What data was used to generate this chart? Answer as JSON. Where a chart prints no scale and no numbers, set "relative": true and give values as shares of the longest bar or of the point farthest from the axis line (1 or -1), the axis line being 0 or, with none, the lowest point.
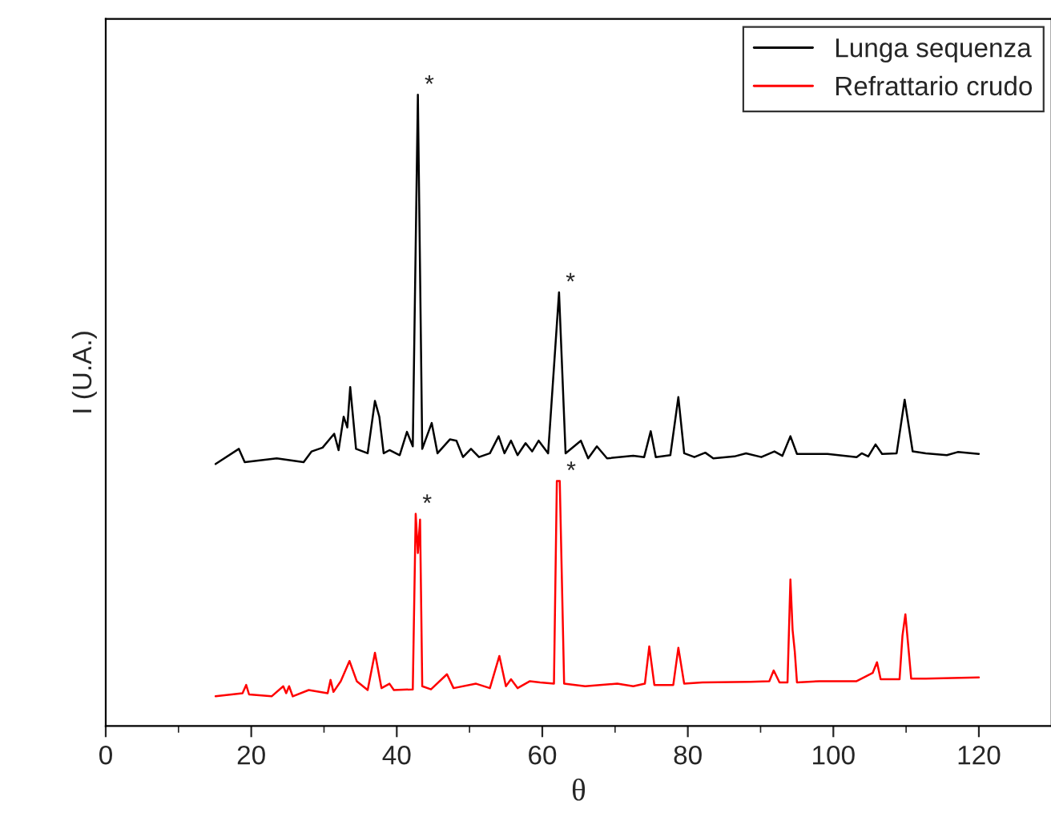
{
  "chart_data": {
    "type": "line",
    "relative": true,
    "xlabel": "θ",
    "ylabel": "I (U.A.)",
    "xlim": [
      0,
      130
    ],
    "xticks": [
      0,
      {
        "value": 10,
        "label": null
      },
      20,
      {
        "value": 30,
        "label": null
      },
      40,
      {
        "value": 50,
        "label": null
      },
      60,
      {
        "value": 70,
        "label": null
      },
      80,
      {
        "value": 90,
        "label": null
      },
      100,
      {
        "value": 110,
        "label": null
      },
      120
    ],
    "tick_labels": "x",
    "legend": "top right",
    "grid": false,
    "marker": "none",
    "line_style": "solid",
    "series": [
      {
        "name": "Lunga sequenza",
        "color": "#000000",
        "x": [
          15.1,
          18.3,
          19.1,
          23.5,
          27.2,
          28.3,
          29.8,
          31.4,
          32.0,
          32.7,
          33.2,
          33.6,
          34.4,
          36.0,
          37.0,
          37.6,
          38.2,
          39.0,
          40.4,
          41.4,
          42.2,
          42.9,
          43.5,
          44.8,
          45.6,
          47.3,
          48.2,
          49.1,
          50.2,
          51.3,
          52.8,
          54.0,
          54.8,
          55.7,
          56.6,
          57.7,
          58.6,
          59.5,
          60.8,
          62.3,
          63.2,
          65.3,
          66.3,
          67.5,
          68.9,
          72.5,
          74.0,
          74.9,
          75.6,
          77.6,
          78.7,
          79.5,
          80.9,
          82.4,
          83.5,
          86.4,
          88.0,
          90.1,
          91.9,
          93.0,
          94.1,
          95.0,
          99.2,
          103.2,
          103.9,
          104.8,
          105.8,
          106.7,
          108.7,
          109.8,
          110.9,
          112.7,
          115.6,
          117.1,
          120.0
        ],
        "values": [
          0.415,
          0.439,
          0.418,
          0.424,
          0.418,
          0.435,
          0.441,
          0.463,
          0.437,
          0.49,
          0.473,
          0.537,
          0.439,
          0.432,
          0.515,
          0.49,
          0.432,
          0.437,
          0.429,
          0.466,
          0.443,
          1.0,
          0.439,
          0.48,
          0.432,
          0.454,
          0.452,
          0.426,
          0.439,
          0.426,
          0.432,
          0.459,
          0.432,
          0.452,
          0.429,
          0.448,
          0.435,
          0.452,
          0.432,
          0.687,
          0.432,
          0.452,
          0.424,
          0.443,
          0.424,
          0.428,
          0.426,
          0.467,
          0.426,
          0.429,
          0.521,
          0.432,
          0.426,
          0.433,
          0.424,
          0.427,
          0.432,
          0.426,
          0.435,
          0.428,
          0.459,
          0.431,
          0.431,
          0.426,
          0.432,
          0.427,
          0.446,
          0.431,
          0.432,
          0.517,
          0.435,
          0.432,
          0.429,
          0.434,
          0.431
        ]
      },
      {
        "name": "Refrattario crudo",
        "color": "#ff0000",
        "x": [
          15.1,
          18.8,
          19.3,
          19.7,
          22.8,
          24.4,
          24.8,
          25.2,
          25.7,
          27.9,
          30.5,
          30.9,
          31.3,
          32.3,
          33.5,
          34.5,
          36.0,
          37.0,
          37.9,
          39.0,
          39.6,
          42.2,
          42.6,
          42.9,
          43.2,
          43.5,
          44.7,
          46.9,
          47.8,
          50.9,
          52.8,
          54.1,
          55.0,
          55.7,
          56.6,
          58.3,
          59.7,
          61.6,
          62.0,
          62.4,
          63.0,
          65.9,
          70.3,
          72.5,
          74.1,
          74.7,
          75.4,
          78.0,
          78.7,
          79.5,
          82.0,
          88.6,
          91.2,
          91.8,
          92.6,
          93.7,
          94.1,
          94.4,
          94.7,
          95.0,
          98.1,
          103.2,
          105.4,
          106.0,
          106.5,
          109.1,
          109.5,
          109.9,
          110.2,
          110.7,
          112.7,
          120.0
        ],
        "values": [
          0.047,
          0.052,
          0.065,
          0.05,
          0.047,
          0.063,
          0.052,
          0.063,
          0.047,
          0.057,
          0.052,
          0.073,
          0.054,
          0.071,
          0.103,
          0.071,
          0.057,
          0.116,
          0.06,
          0.067,
          0.057,
          0.058,
          0.336,
          0.274,
          0.327,
          0.063,
          0.058,
          0.082,
          0.06,
          0.067,
          0.06,
          0.111,
          0.063,
          0.074,
          0.06,
          0.071,
          0.069,
          0.067,
          0.388,
          0.388,
          0.067,
          0.063,
          0.067,
          0.063,
          0.067,
          0.126,
          0.065,
          0.065,
          0.124,
          0.067,
          0.069,
          0.07,
          0.071,
          0.088,
          0.069,
          0.069,
          0.232,
          0.152,
          0.118,
          0.069,
          0.071,
          0.071,
          0.084,
          0.101,
          0.074,
          0.074,
          0.143,
          0.177,
          0.139,
          0.075,
          0.075,
          0.077
        ]
      }
    ],
    "annotations": [
      {
        "text": "*",
        "x": 42.9,
        "y": 1.0
      },
      {
        "text": "*",
        "x": 62.3,
        "y": 0.687
      },
      {
        "text": "*",
        "x": 42.6,
        "y": 0.336
      },
      {
        "text": "*",
        "x": 62.4,
        "y": 0.388
      }
    ]
  }
}
